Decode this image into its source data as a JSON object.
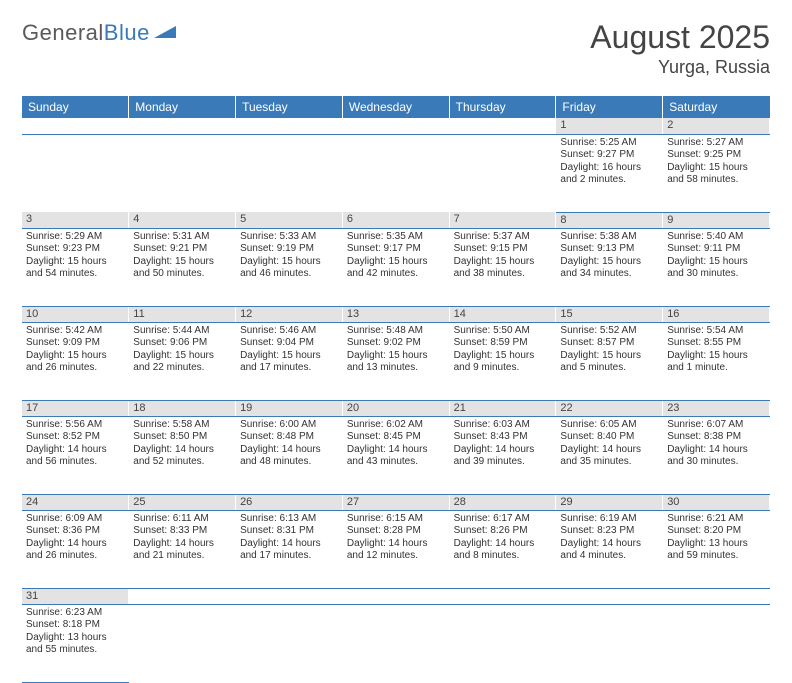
{
  "logo": {
    "text1": "General",
    "text2": "Blue"
  },
  "title": "August 2025",
  "location": "Yurga, Russia",
  "weekdays": [
    "Sunday",
    "Monday",
    "Tuesday",
    "Wednesday",
    "Thursday",
    "Friday",
    "Saturday"
  ],
  "colors": {
    "header_bg": "#3a7ab8",
    "header_fg": "#ffffff",
    "daynum_bg": "#e3e3e3",
    "border": "#3a7ab8",
    "logo_gray": "#5a5a5a",
    "logo_blue": "#3a7ab8"
  },
  "weeks": [
    [
      null,
      null,
      null,
      null,
      null,
      {
        "n": "1",
        "sunrise": "Sunrise: 5:25 AM",
        "sunset": "Sunset: 9:27 PM",
        "daylight": "Daylight: 16 hours and 2 minutes."
      },
      {
        "n": "2",
        "sunrise": "Sunrise: 5:27 AM",
        "sunset": "Sunset: 9:25 PM",
        "daylight": "Daylight: 15 hours and 58 minutes."
      }
    ],
    [
      {
        "n": "3",
        "sunrise": "Sunrise: 5:29 AM",
        "sunset": "Sunset: 9:23 PM",
        "daylight": "Daylight: 15 hours and 54 minutes."
      },
      {
        "n": "4",
        "sunrise": "Sunrise: 5:31 AM",
        "sunset": "Sunset: 9:21 PM",
        "daylight": "Daylight: 15 hours and 50 minutes."
      },
      {
        "n": "5",
        "sunrise": "Sunrise: 5:33 AM",
        "sunset": "Sunset: 9:19 PM",
        "daylight": "Daylight: 15 hours and 46 minutes."
      },
      {
        "n": "6",
        "sunrise": "Sunrise: 5:35 AM",
        "sunset": "Sunset: 9:17 PM",
        "daylight": "Daylight: 15 hours and 42 minutes."
      },
      {
        "n": "7",
        "sunrise": "Sunrise: 5:37 AM",
        "sunset": "Sunset: 9:15 PM",
        "daylight": "Daylight: 15 hours and 38 minutes."
      },
      {
        "n": "8",
        "sunrise": "Sunrise: 5:38 AM",
        "sunset": "Sunset: 9:13 PM",
        "daylight": "Daylight: 15 hours and 34 minutes."
      },
      {
        "n": "9",
        "sunrise": "Sunrise: 5:40 AM",
        "sunset": "Sunset: 9:11 PM",
        "daylight": "Daylight: 15 hours and 30 minutes."
      }
    ],
    [
      {
        "n": "10",
        "sunrise": "Sunrise: 5:42 AM",
        "sunset": "Sunset: 9:09 PM",
        "daylight": "Daylight: 15 hours and 26 minutes."
      },
      {
        "n": "11",
        "sunrise": "Sunrise: 5:44 AM",
        "sunset": "Sunset: 9:06 PM",
        "daylight": "Daylight: 15 hours and 22 minutes."
      },
      {
        "n": "12",
        "sunrise": "Sunrise: 5:46 AM",
        "sunset": "Sunset: 9:04 PM",
        "daylight": "Daylight: 15 hours and 17 minutes."
      },
      {
        "n": "13",
        "sunrise": "Sunrise: 5:48 AM",
        "sunset": "Sunset: 9:02 PM",
        "daylight": "Daylight: 15 hours and 13 minutes."
      },
      {
        "n": "14",
        "sunrise": "Sunrise: 5:50 AM",
        "sunset": "Sunset: 8:59 PM",
        "daylight": "Daylight: 15 hours and 9 minutes."
      },
      {
        "n": "15",
        "sunrise": "Sunrise: 5:52 AM",
        "sunset": "Sunset: 8:57 PM",
        "daylight": "Daylight: 15 hours and 5 minutes."
      },
      {
        "n": "16",
        "sunrise": "Sunrise: 5:54 AM",
        "sunset": "Sunset: 8:55 PM",
        "daylight": "Daylight: 15 hours and 1 minute."
      }
    ],
    [
      {
        "n": "17",
        "sunrise": "Sunrise: 5:56 AM",
        "sunset": "Sunset: 8:52 PM",
        "daylight": "Daylight: 14 hours and 56 minutes."
      },
      {
        "n": "18",
        "sunrise": "Sunrise: 5:58 AM",
        "sunset": "Sunset: 8:50 PM",
        "daylight": "Daylight: 14 hours and 52 minutes."
      },
      {
        "n": "19",
        "sunrise": "Sunrise: 6:00 AM",
        "sunset": "Sunset: 8:48 PM",
        "daylight": "Daylight: 14 hours and 48 minutes."
      },
      {
        "n": "20",
        "sunrise": "Sunrise: 6:02 AM",
        "sunset": "Sunset: 8:45 PM",
        "daylight": "Daylight: 14 hours and 43 minutes."
      },
      {
        "n": "21",
        "sunrise": "Sunrise: 6:03 AM",
        "sunset": "Sunset: 8:43 PM",
        "daylight": "Daylight: 14 hours and 39 minutes."
      },
      {
        "n": "22",
        "sunrise": "Sunrise: 6:05 AM",
        "sunset": "Sunset: 8:40 PM",
        "daylight": "Daylight: 14 hours and 35 minutes."
      },
      {
        "n": "23",
        "sunrise": "Sunrise: 6:07 AM",
        "sunset": "Sunset: 8:38 PM",
        "daylight": "Daylight: 14 hours and 30 minutes."
      }
    ],
    [
      {
        "n": "24",
        "sunrise": "Sunrise: 6:09 AM",
        "sunset": "Sunset: 8:36 PM",
        "daylight": "Daylight: 14 hours and 26 minutes."
      },
      {
        "n": "25",
        "sunrise": "Sunrise: 6:11 AM",
        "sunset": "Sunset: 8:33 PM",
        "daylight": "Daylight: 14 hours and 21 minutes."
      },
      {
        "n": "26",
        "sunrise": "Sunrise: 6:13 AM",
        "sunset": "Sunset: 8:31 PM",
        "daylight": "Daylight: 14 hours and 17 minutes."
      },
      {
        "n": "27",
        "sunrise": "Sunrise: 6:15 AM",
        "sunset": "Sunset: 8:28 PM",
        "daylight": "Daylight: 14 hours and 12 minutes."
      },
      {
        "n": "28",
        "sunrise": "Sunrise: 6:17 AM",
        "sunset": "Sunset: 8:26 PM",
        "daylight": "Daylight: 14 hours and 8 minutes."
      },
      {
        "n": "29",
        "sunrise": "Sunrise: 6:19 AM",
        "sunset": "Sunset: 8:23 PM",
        "daylight": "Daylight: 14 hours and 4 minutes."
      },
      {
        "n": "30",
        "sunrise": "Sunrise: 6:21 AM",
        "sunset": "Sunset: 8:20 PM",
        "daylight": "Daylight: 13 hours and 59 minutes."
      }
    ],
    [
      {
        "n": "31",
        "sunrise": "Sunrise: 6:23 AM",
        "sunset": "Sunset: 8:18 PM",
        "daylight": "Daylight: 13 hours and 55 minutes."
      },
      null,
      null,
      null,
      null,
      null,
      null
    ]
  ]
}
